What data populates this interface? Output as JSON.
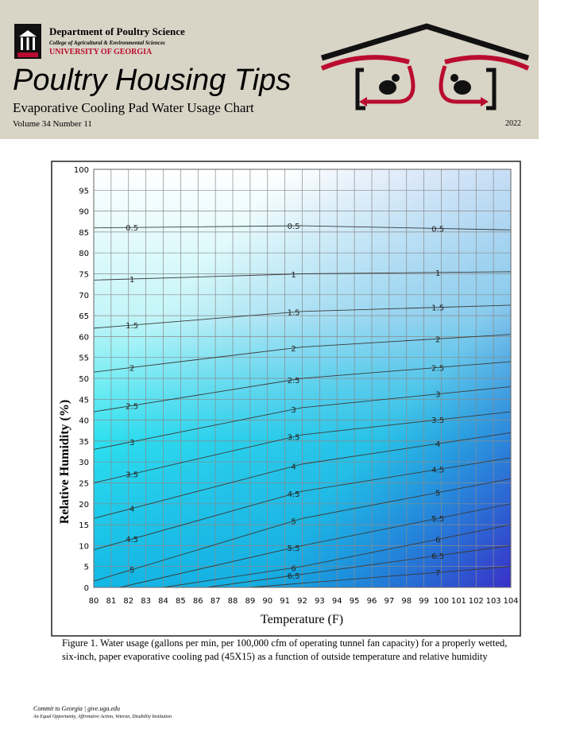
{
  "header": {
    "department": "Department of Poultry Science",
    "college": "College of Agricultural & Environmental Sciences",
    "university": "UNIVERSITY OF GEORGIA",
    "title": "Poultry Housing Tips",
    "subtitle": "Evaporative Cooling Pad Water Usage Chart",
    "issue": "Volume 34 Number 11",
    "year": "2022"
  },
  "chart_data": {
    "type": "contour",
    "xlabel": "Temperature (F)",
    "ylabel": "Relative Humidity (%)",
    "xlim": [
      80,
      104
    ],
    "ylim": [
      0,
      100
    ],
    "xticks": [
      80,
      81,
      82,
      83,
      84,
      85,
      86,
      87,
      88,
      89,
      90,
      91,
      92,
      93,
      94,
      95,
      96,
      97,
      98,
      99,
      100,
      101,
      102,
      103,
      104
    ],
    "yticks": [
      0,
      5,
      10,
      15,
      20,
      25,
      30,
      35,
      40,
      45,
      50,
      55,
      60,
      65,
      70,
      75,
      80,
      85,
      90,
      95,
      100
    ],
    "grid": true,
    "color": "#3a3a3a",
    "series": [
      {
        "name": "0.5",
        "x": [
          80,
          92,
          104
        ],
        "values": [
          86,
          86.5,
          85.5
        ]
      },
      {
        "name": "1",
        "x": [
          80,
          92,
          104
        ],
        "values": [
          73.5,
          75,
          75.5
        ]
      },
      {
        "name": "1.5",
        "x": [
          80,
          92,
          104
        ],
        "values": [
          62,
          66,
          67.5
        ]
      },
      {
        "name": "2",
        "x": [
          80,
          92,
          104
        ],
        "values": [
          51.5,
          57.5,
          60.5
        ]
      },
      {
        "name": "2.5",
        "x": [
          80,
          92,
          104
        ],
        "values": [
          42,
          50,
          54
        ]
      },
      {
        "name": "3",
        "x": [
          80,
          92,
          104
        ],
        "values": [
          33,
          43,
          48
        ]
      },
      {
        "name": "3.5",
        "x": [
          80,
          92,
          104
        ],
        "values": [
          25,
          36.5,
          42
        ]
      },
      {
        "name": "4",
        "x": [
          80,
          92,
          104
        ],
        "values": [
          16.5,
          29.5,
          37
        ]
      },
      {
        "name": "4.5",
        "x": [
          80,
          92,
          104
        ],
        "values": [
          9,
          23,
          31
        ]
      },
      {
        "name": "5",
        "x": [
          80,
          92,
          104
        ],
        "values": [
          1.5,
          16.5,
          26
        ]
      },
      {
        "name": "5.5",
        "x": [
          81.5,
          92,
          104
        ],
        "values": [
          0,
          10,
          20
        ]
      },
      {
        "name": "6",
        "x": [
          84,
          92,
          104
        ],
        "values": [
          0,
          5,
          15
        ]
      },
      {
        "name": "6.5",
        "x": [
          86.5,
          104
        ],
        "values": [
          0,
          10
        ]
      },
      {
        "name": "7",
        "x": [
          89,
          104
        ],
        "values": [
          0,
          5
        ]
      }
    ]
  },
  "caption": "Figure 1.   Water usage (gallons per min, per 100,000 cfm of operating tunnel fan capacity) for a properly wetted, six-inch, paper evaporative cooling pad (45X15) as a function of outside temperature and relative humidity",
  "footer": {
    "line1": "Commit to Georgia | give.uga.edu",
    "line2": "An Equal Opportunity, Affirmative Action, Veteran, Disability Institution"
  }
}
